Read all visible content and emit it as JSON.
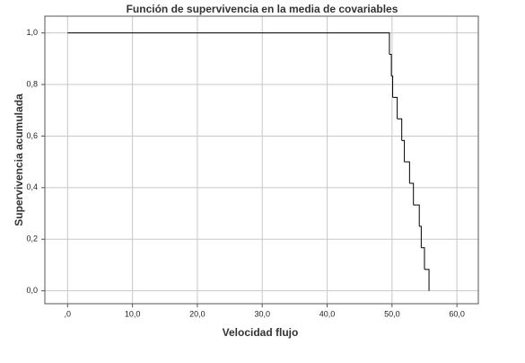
{
  "chart_data": {
    "type": "step",
    "title": "Función de supervivencia en la media de covariables",
    "x_label": "Velocidad flujo",
    "y_label": "Supervivencia acumulada",
    "x": [
      0,
      49.6,
      49.9,
      50.1,
      50.8,
      51.5,
      51.9,
      52.7,
      53.3,
      54.2,
      54.5,
      55.0,
      55.7
    ],
    "values": [
      1,
      0.917,
      0.833,
      0.75,
      0.667,
      0.583,
      0.5,
      0.417,
      0.333,
      0.25,
      0.167,
      0.083,
      0
    ],
    "color": "#000000",
    "xlim": [
      -3.5,
      63.3
    ],
    "ylim": [
      -0.05,
      1.065
    ],
    "xticks": [
      {
        "value": 0,
        "label": ",0"
      },
      {
        "value": 10,
        "label": "10,0"
      },
      {
        "value": 20,
        "label": "20,0"
      },
      {
        "value": 30,
        "label": "30,0"
      },
      {
        "value": 40,
        "label": "40,0"
      },
      {
        "value": 50,
        "label": "50,0"
      },
      {
        "value": 60,
        "label": "60,0"
      }
    ],
    "yticks": [
      {
        "value": 0,
        "label": "0,0"
      },
      {
        "value": 0.2,
        "label": "0,2"
      },
      {
        "value": 0.4,
        "label": "0,4"
      },
      {
        "value": 0.6,
        "label": "0,6"
      },
      {
        "value": 0.8,
        "label": "0,8"
      },
      {
        "value": 1,
        "label": "1,0"
      }
    ],
    "grid": true
  }
}
